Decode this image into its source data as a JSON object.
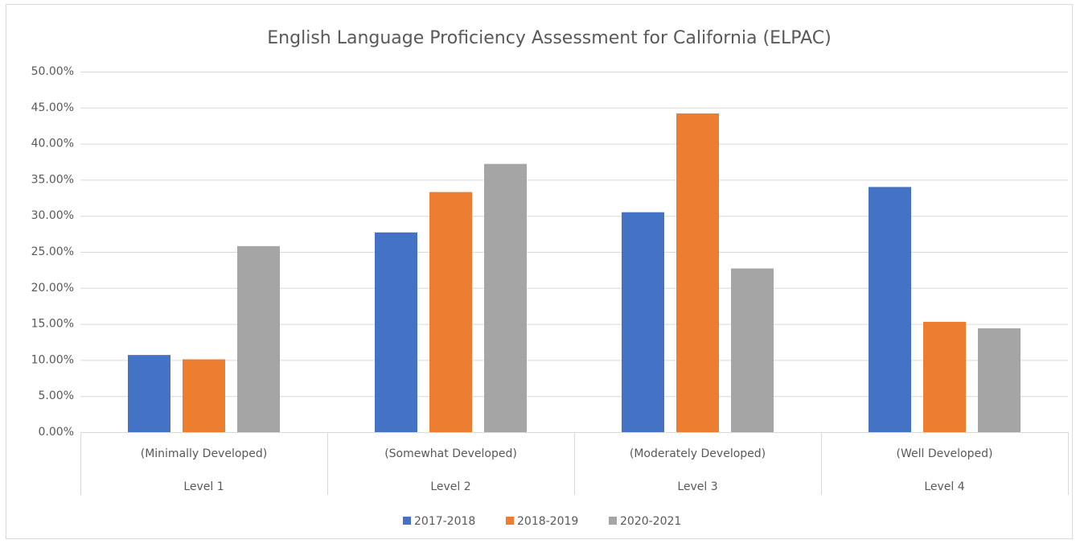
{
  "chart_data": {
    "type": "bar",
    "title": "English Language Proficiency Assessment for California (ELPAC)",
    "categories": [
      "(Minimally Developed)",
      "(Somewhat Developed)",
      "(Moderately Developed)",
      "(Well Developed)"
    ],
    "category_levels": [
      "Level 1",
      "Level 2",
      "Level 3",
      "Level 4"
    ],
    "series": [
      {
        "name": "2017-2018",
        "color": "#4472c4",
        "values": [
          10.7,
          27.7,
          30.5,
          34.0
        ]
      },
      {
        "name": "2018-2019",
        "color": "#ed7d31",
        "values": [
          10.1,
          33.3,
          44.2,
          15.3
        ]
      },
      {
        "name": "2020-2021",
        "color": "#a5a5a5",
        "values": [
          25.8,
          37.2,
          22.7,
          14.4
        ]
      }
    ],
    "ylim": [
      0,
      50
    ],
    "yticks": [
      {
        "value": 0,
        "label": "0.00%"
      },
      {
        "value": 5,
        "label": "5.00%"
      },
      {
        "value": 10,
        "label": "10.00%"
      },
      {
        "value": 15,
        "label": "15.00%"
      },
      {
        "value": 20,
        "label": "20.00%"
      },
      {
        "value": 25,
        "label": "25.00%"
      },
      {
        "value": 30,
        "label": "30.00%"
      },
      {
        "value": 35,
        "label": "35.00%"
      },
      {
        "value": 40,
        "label": "40.00%"
      },
      {
        "value": 45,
        "label": "45.00%"
      },
      {
        "value": 50,
        "label": "50.00%"
      }
    ],
    "grid": true,
    "legend": "bottom"
  }
}
